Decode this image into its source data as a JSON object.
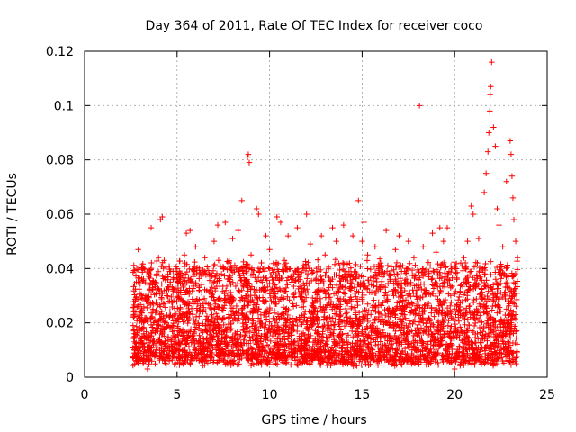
{
  "chart_data": {
    "type": "scatter",
    "title": "Day 364 of 2011, Rate Of TEC Index for receiver coco",
    "xlabel": "GPS time / hours",
    "ylabel": "ROTI / TECUs",
    "xlim": [
      0,
      25
    ],
    "ylim": [
      0,
      0.12
    ],
    "xticks": [
      0,
      5,
      10,
      15,
      20,
      25
    ],
    "yticks": [
      0,
      0.02,
      0.04,
      0.06,
      0.08,
      0.1,
      0.12
    ],
    "xtick_labels": [
      "0",
      "5",
      "10",
      "15",
      "20",
      "25"
    ],
    "ytick_labels": [
      "0",
      "0.02",
      "0.04",
      "0.06",
      "0.08",
      "0.1",
      "0.12"
    ],
    "grid": true,
    "marker": "+",
    "color": "#ff0000",
    "points": [
      [
        2.7,
        0.013
      ],
      [
        2.8,
        0.035
      ],
      [
        2.9,
        0.047
      ],
      [
        3.0,
        0.022
      ],
      [
        3.1,
        0.041
      ],
      [
        3.2,
        0.016
      ],
      [
        3.3,
        0.03
      ],
      [
        3.4,
        0.003
      ],
      [
        3.6,
        0.055
      ],
      [
        3.7,
        0.025
      ],
      [
        3.9,
        0.038
      ],
      [
        4.0,
        0.044
      ],
      [
        4.1,
        0.058
      ],
      [
        4.2,
        0.059
      ],
      [
        4.3,
        0.012
      ],
      [
        4.4,
        0.036
      ],
      [
        4.6,
        0.028
      ],
      [
        4.8,
        0.019
      ],
      [
        5.0,
        0.04
      ],
      [
        5.2,
        0.032
      ],
      [
        5.4,
        0.045
      ],
      [
        5.5,
        0.053
      ],
      [
        5.7,
        0.054
      ],
      [
        5.9,
        0.021
      ],
      [
        6.0,
        0.048
      ],
      [
        6.2,
        0.033
      ],
      [
        6.5,
        0.044
      ],
      [
        6.7,
        0.027
      ],
      [
        7.0,
        0.05
      ],
      [
        7.2,
        0.056
      ],
      [
        7.4,
        0.038
      ],
      [
        7.6,
        0.057
      ],
      [
        7.8,
        0.042
      ],
      [
        8.0,
        0.051
      ],
      [
        8.3,
        0.054
      ],
      [
        8.5,
        0.065
      ],
      [
        8.7,
        0.03
      ],
      [
        8.8,
        0.081
      ],
      [
        8.85,
        0.082
      ],
      [
        8.9,
        0.079
      ],
      [
        9.0,
        0.045
      ],
      [
        9.3,
        0.062
      ],
      [
        9.4,
        0.06
      ],
      [
        9.6,
        0.035
      ],
      [
        9.8,
        0.052
      ],
      [
        10.0,
        0.047
      ],
      [
        10.2,
        0.028
      ],
      [
        10.4,
        0.059
      ],
      [
        10.6,
        0.057
      ],
      [
        10.8,
        0.043
      ],
      [
        11.0,
        0.052
      ],
      [
        11.2,
        0.037
      ],
      [
        11.5,
        0.055
      ],
      [
        11.8,
        0.04
      ],
      [
        12.0,
        0.06
      ],
      [
        12.2,
        0.049
      ],
      [
        12.5,
        0.036
      ],
      [
        12.8,
        0.052
      ],
      [
        13.0,
        0.045
      ],
      [
        13.2,
        0.033
      ],
      [
        13.4,
        0.055
      ],
      [
        13.6,
        0.05
      ],
      [
        13.8,
        0.041
      ],
      [
        14.0,
        0.056
      ],
      [
        14.2,
        0.038
      ],
      [
        14.5,
        0.052
      ],
      [
        14.8,
        0.065
      ],
      [
        15.0,
        0.05
      ],
      [
        15.1,
        0.057
      ],
      [
        15.3,
        0.045
      ],
      [
        15.5,
        0.034
      ],
      [
        15.7,
        0.048
      ],
      [
        16.0,
        0.042
      ],
      [
        16.3,
        0.054
      ],
      [
        16.5,
        0.036
      ],
      [
        16.8,
        0.047
      ],
      [
        17.0,
        0.052
      ],
      [
        17.3,
        0.039
      ],
      [
        17.5,
        0.05
      ],
      [
        17.8,
        0.044
      ],
      [
        18.1,
        0.1
      ],
      [
        18.3,
        0.048
      ],
      [
        18.6,
        0.037
      ],
      [
        18.8,
        0.053
      ],
      [
        19.0,
        0.046
      ],
      [
        19.2,
        0.055
      ],
      [
        19.4,
        0.05
      ],
      [
        19.6,
        0.055
      ],
      [
        19.8,
        0.041
      ],
      [
        20.0,
        0.003
      ],
      [
        20.2,
        0.022
      ],
      [
        20.5,
        0.044
      ],
      [
        20.7,
        0.05
      ],
      [
        20.9,
        0.063
      ],
      [
        21.0,
        0.06
      ],
      [
        21.3,
        0.051
      ],
      [
        21.5,
        0.04
      ],
      [
        21.6,
        0.068
      ],
      [
        21.7,
        0.075
      ],
      [
        21.8,
        0.083
      ],
      [
        21.85,
        0.09
      ],
      [
        21.9,
        0.098
      ],
      [
        21.92,
        0.104
      ],
      [
        21.95,
        0.107
      ],
      [
        22.0,
        0.116
      ],
      [
        22.1,
        0.092
      ],
      [
        22.2,
        0.085
      ],
      [
        22.3,
        0.062
      ],
      [
        22.4,
        0.056
      ],
      [
        22.6,
        0.048
      ],
      [
        22.8,
        0.072
      ],
      [
        23.0,
        0.087
      ],
      [
        23.05,
        0.082
      ],
      [
        23.1,
        0.074
      ],
      [
        23.15,
        0.066
      ],
      [
        23.2,
        0.058
      ],
      [
        23.3,
        0.05
      ],
      [
        23.4,
        0.044
      ]
    ],
    "dense_band": {
      "x_range": [
        2.6,
        23.4
      ],
      "y_range": [
        0.003,
        0.047
      ]
    }
  }
}
